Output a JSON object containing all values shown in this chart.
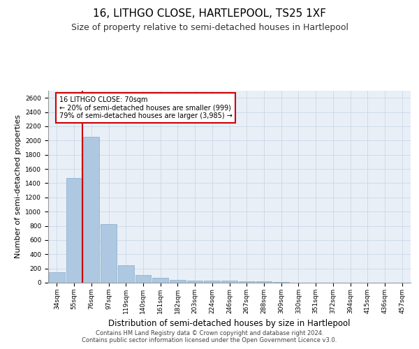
{
  "title": "16, LITHGO CLOSE, HARTLEPOOL, TS25 1XF",
  "subtitle": "Size of property relative to semi-detached houses in Hartlepool",
  "xlabel": "Distribution of semi-detached houses by size in Hartlepool",
  "ylabel": "Number of semi-detached properties",
  "categories": [
    "34sqm",
    "55sqm",
    "76sqm",
    "97sqm",
    "119sqm",
    "140sqm",
    "161sqm",
    "182sqm",
    "203sqm",
    "224sqm",
    "246sqm",
    "267sqm",
    "288sqm",
    "309sqm",
    "330sqm",
    "351sqm",
    "372sqm",
    "394sqm",
    "415sqm",
    "436sqm",
    "457sqm"
  ],
  "values": [
    150,
    1470,
    2050,
    820,
    250,
    110,
    65,
    40,
    30,
    25,
    30,
    20,
    15,
    5,
    2,
    1,
    1,
    0,
    0,
    0,
    0
  ],
  "bar_color": "#adc8e0",
  "bar_edge_color": "#88aece",
  "highlight_line_color": "#cc0000",
  "annotation_text": "16 LITHGO CLOSE: 70sqm\n← 20% of semi-detached houses are smaller (999)\n79% of semi-detached houses are larger (3,985) →",
  "annotation_box_color": "#ffffff",
  "annotation_box_edge": "#cc0000",
  "ylim": [
    0,
    2700
  ],
  "yticks": [
    0,
    200,
    400,
    600,
    800,
    1000,
    1200,
    1400,
    1600,
    1800,
    2000,
    2200,
    2400,
    2600
  ],
  "grid_color": "#ccd8e8",
  "background_color": "#e8eff7",
  "footer_text": "Contains HM Land Registry data © Crown copyright and database right 2024.\nContains public sector information licensed under the Open Government Licence v3.0.",
  "title_fontsize": 11,
  "subtitle_fontsize": 9,
  "tick_fontsize": 6.5,
  "ylabel_fontsize": 8,
  "xlabel_fontsize": 8.5,
  "footer_fontsize": 6
}
